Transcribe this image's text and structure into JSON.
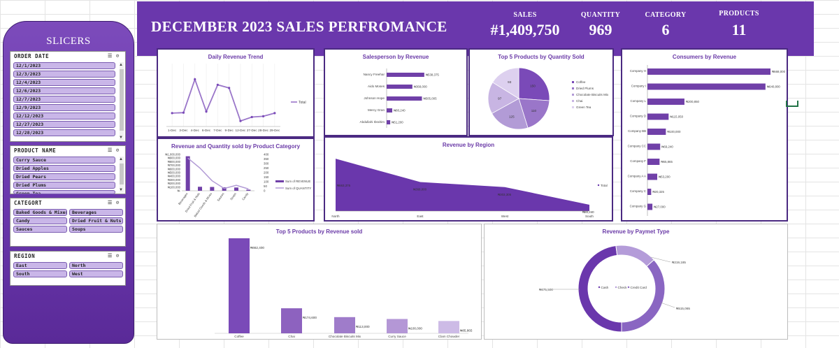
{
  "sidebar": {
    "title": "SLICERS",
    "slicers": [
      {
        "name": "ORDER DATE",
        "items": [
          "12/1/2023",
          "12/3/2023",
          "12/4/2023",
          "12/6/2023",
          "12/7/2023",
          "12/9/2023",
          "12/12/2023",
          "12/27/2023",
          "12/28/2023"
        ]
      },
      {
        "name": "PRODUCT NAME",
        "items": [
          "Curry Sauce",
          "Dried Apples",
          "Dried Pears",
          "Dried Plums",
          "Green Tea"
        ]
      },
      {
        "name": "CATEGORT",
        "items": [
          "Baked Goods & Mixes",
          "Beverages",
          "Candy",
          "Dried Fruit & Nuts",
          "Sauces",
          "Soups"
        ]
      },
      {
        "name": "REGION",
        "items": [
          "East",
          "North",
          "South",
          "West"
        ]
      }
    ]
  },
  "header": {
    "title": "DECEMBER 2023 SALES PERFROMANCE",
    "kpis": [
      {
        "label": "SALES",
        "value": "#1,409,750"
      },
      {
        "label": "QUANTITY",
        "value": "969"
      },
      {
        "label": "CATEGORY",
        "value": "6"
      },
      {
        "label": "PRODUCTS",
        "value": "11"
      }
    ]
  },
  "colors": {
    "accent": "#6a37ac",
    "bar": "#7040a8",
    "light": "#b9a0dc",
    "lighter": "#d5c6ec"
  },
  "chart_data": [
    {
      "id": "daily",
      "type": "line",
      "title": "Daily Revenue Trend",
      "categories": [
        "1-Dec",
        "3-Dec",
        "4-Dec",
        "6-Dec",
        "7-Dec",
        "9-Dec",
        "12-Dec",
        "27-Dec",
        "28-Dec",
        "29-Dec"
      ],
      "series": [
        {
          "name": "Total",
          "values": [
            85000,
            88000,
            300000,
            95000,
            265000,
            245000,
            35000,
            60000,
            65000,
            85000
          ]
        }
      ],
      "ylim": [
        0,
        400000
      ],
      "legend": "right"
    },
    {
      "id": "salesperson",
      "type": "bar",
      "title": "Salesperson by Revenue",
      "categories": [
        "Nancy Freehar",
        "Aido Moses",
        "Johnson Hope",
        "Mercy Gran",
        "Abdullahi Ibrahim"
      ],
      "values": [
        538375,
        368000,
        505005,
        80240,
        51200
      ],
      "value_labels": [
        "₦538,375",
        "₦368,000",
        "₦505,005",
        "₦80,240",
        "₦51,200"
      ]
    },
    {
      "id": "top5qty",
      "type": "pie",
      "title": "Top 5 Products by Quantity Sold",
      "categories": [
        "Coffee",
        "Dried Plums",
        "Chocolate Biscuits Mix",
        "Chai",
        "Green Tea"
      ],
      "values": [
        150,
        110,
        125,
        97,
        93
      ],
      "value_labels": [
        "150",
        "110",
        "125",
        "97",
        "93"
      ],
      "colors": [
        "#7a4ab8",
        "#9a76c9",
        "#b29bd6",
        "#c8b5e3",
        "#ddd0ef"
      ],
      "legend": "right"
    },
    {
      "id": "consumers",
      "type": "bar",
      "title": "Consumers by Revenue",
      "categories": [
        "Company H",
        "Company I",
        "Company L",
        "Company D",
        "Company BB",
        "Company CC",
        "Company F",
        "Company A A",
        "Company C",
        "Company G"
      ],
      "values": [
        668000,
        640800,
        200850,
        115050,
        100000,
        69240,
        65865,
        53200,
        20325,
        27000
      ],
      "value_labels": [
        "₦668,000",
        "₦640,800",
        "₦200,850",
        "₦115,050",
        "₦100,000",
        "₦69,240",
        "₦65,865",
        "₦53,200",
        "₦20,325",
        "₦27,000"
      ]
    },
    {
      "id": "category",
      "type": "bar",
      "title": "Revenue and Quantity sold by Product Category",
      "categories": [
        "Beverages",
        "Dried Fruit & Nuts",
        "Baked Goods & Mixes",
        "Sauces",
        "Soups",
        "Candy"
      ],
      "series": [
        {
          "name": "Sum of REVENUE",
          "values": [
            950000,
            110000,
            105000,
            95000,
            90000,
            30000
          ]
        },
        {
          "name": "Sum of QUANTITY",
          "values": [
            360,
            250,
            110,
            25,
            60,
            20
          ]
        }
      ],
      "y_left_ticks": [
        "₦1,000,000",
        "₦900,000",
        "₦800,000",
        "₦700,000",
        "₦600,000",
        "₦500,000",
        "₦400,000",
        "₦300,000",
        "₦200,000",
        "₦100,000",
        "₦-"
      ],
      "y_right_ticks": [
        "400",
        "350",
        "300",
        "250",
        "200",
        "150",
        "100",
        "50",
        "0"
      ],
      "legend": "right"
    },
    {
      "id": "region",
      "type": "area",
      "title": "Revenue by Region",
      "categories": [
        "North",
        "East",
        "West",
        "South"
      ],
      "series": [
        {
          "name": "Total",
          "values": [
            663375,
            368000,
            303305,
            80240
          ]
        }
      ],
      "value_labels": [
        "₦663,375",
        "₦368,000",
        "₦303,305",
        "₦80,240"
      ],
      "legend": "right"
    },
    {
      "id": "top5rev",
      "type": "bar",
      "title": "Top 5 Products by Revenue sold",
      "categories": [
        "Coffee",
        "Chai",
        "Chocolate Biscuits Mix",
        "Curry Sauce",
        "Clam Chowder"
      ],
      "values": [
        662400,
        174600,
        113000,
        100000,
        85865
      ],
      "value_labels": [
        "₦662,400",
        "₦174,600",
        "₦113,000",
        "₦100,000",
        "₦85,865"
      ],
      "colors": [
        "#7a4ab8",
        "#8d62bf",
        "#9f7cca",
        "#b497d6",
        "#cdbbe6"
      ]
    },
    {
      "id": "payment",
      "type": "pie",
      "title": "Revenue by Paymet Type",
      "categories": [
        "Cash",
        "Check",
        "Credit Card"
      ],
      "values": [
        675500,
        219185,
        515065
      ],
      "value_labels": [
        "₦675,500",
        "₦219,185",
        "₦515,065"
      ],
      "colors": [
        "#6a37ac",
        "#b49cd9",
        "#8a66c2"
      ],
      "legend": "center"
    }
  ]
}
